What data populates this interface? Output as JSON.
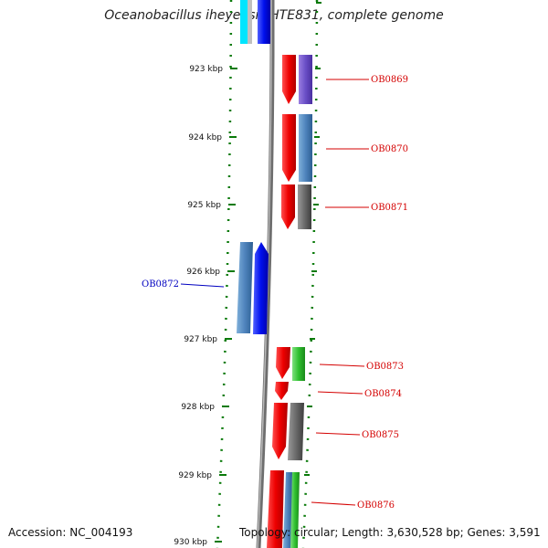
{
  "title": "Oceanobacillus iheyensis HTE831, complete genome",
  "accession": "Accession: NC_004193",
  "topology": "Topology: circular; Length: 3,630,528 bp; Genes: 3,591",
  "colors": {
    "forward_label": "#d40000",
    "reverse_label": "#0000c0",
    "backbone": "#8a8a8a",
    "tick": "#0a7a0a"
  },
  "scale_labels": [
    "923 kbp",
    "924 kbp",
    "925 kbp",
    "926 kbp",
    "927 kbp",
    "928 kbp",
    "929 kbp",
    "930 kbp"
  ],
  "gene_labels": [
    {
      "text": "OB0869",
      "strand": "forward"
    },
    {
      "text": "OB0870",
      "strand": "forward"
    },
    {
      "text": "OB0871",
      "strand": "forward"
    },
    {
      "text": "OB0872",
      "strand": "reverse"
    },
    {
      "text": "OB0873",
      "strand": "forward"
    },
    {
      "text": "OB0874",
      "strand": "forward"
    },
    {
      "text": "OB0875",
      "strand": "forward"
    },
    {
      "text": "OB0876",
      "strand": "forward"
    }
  ]
}
